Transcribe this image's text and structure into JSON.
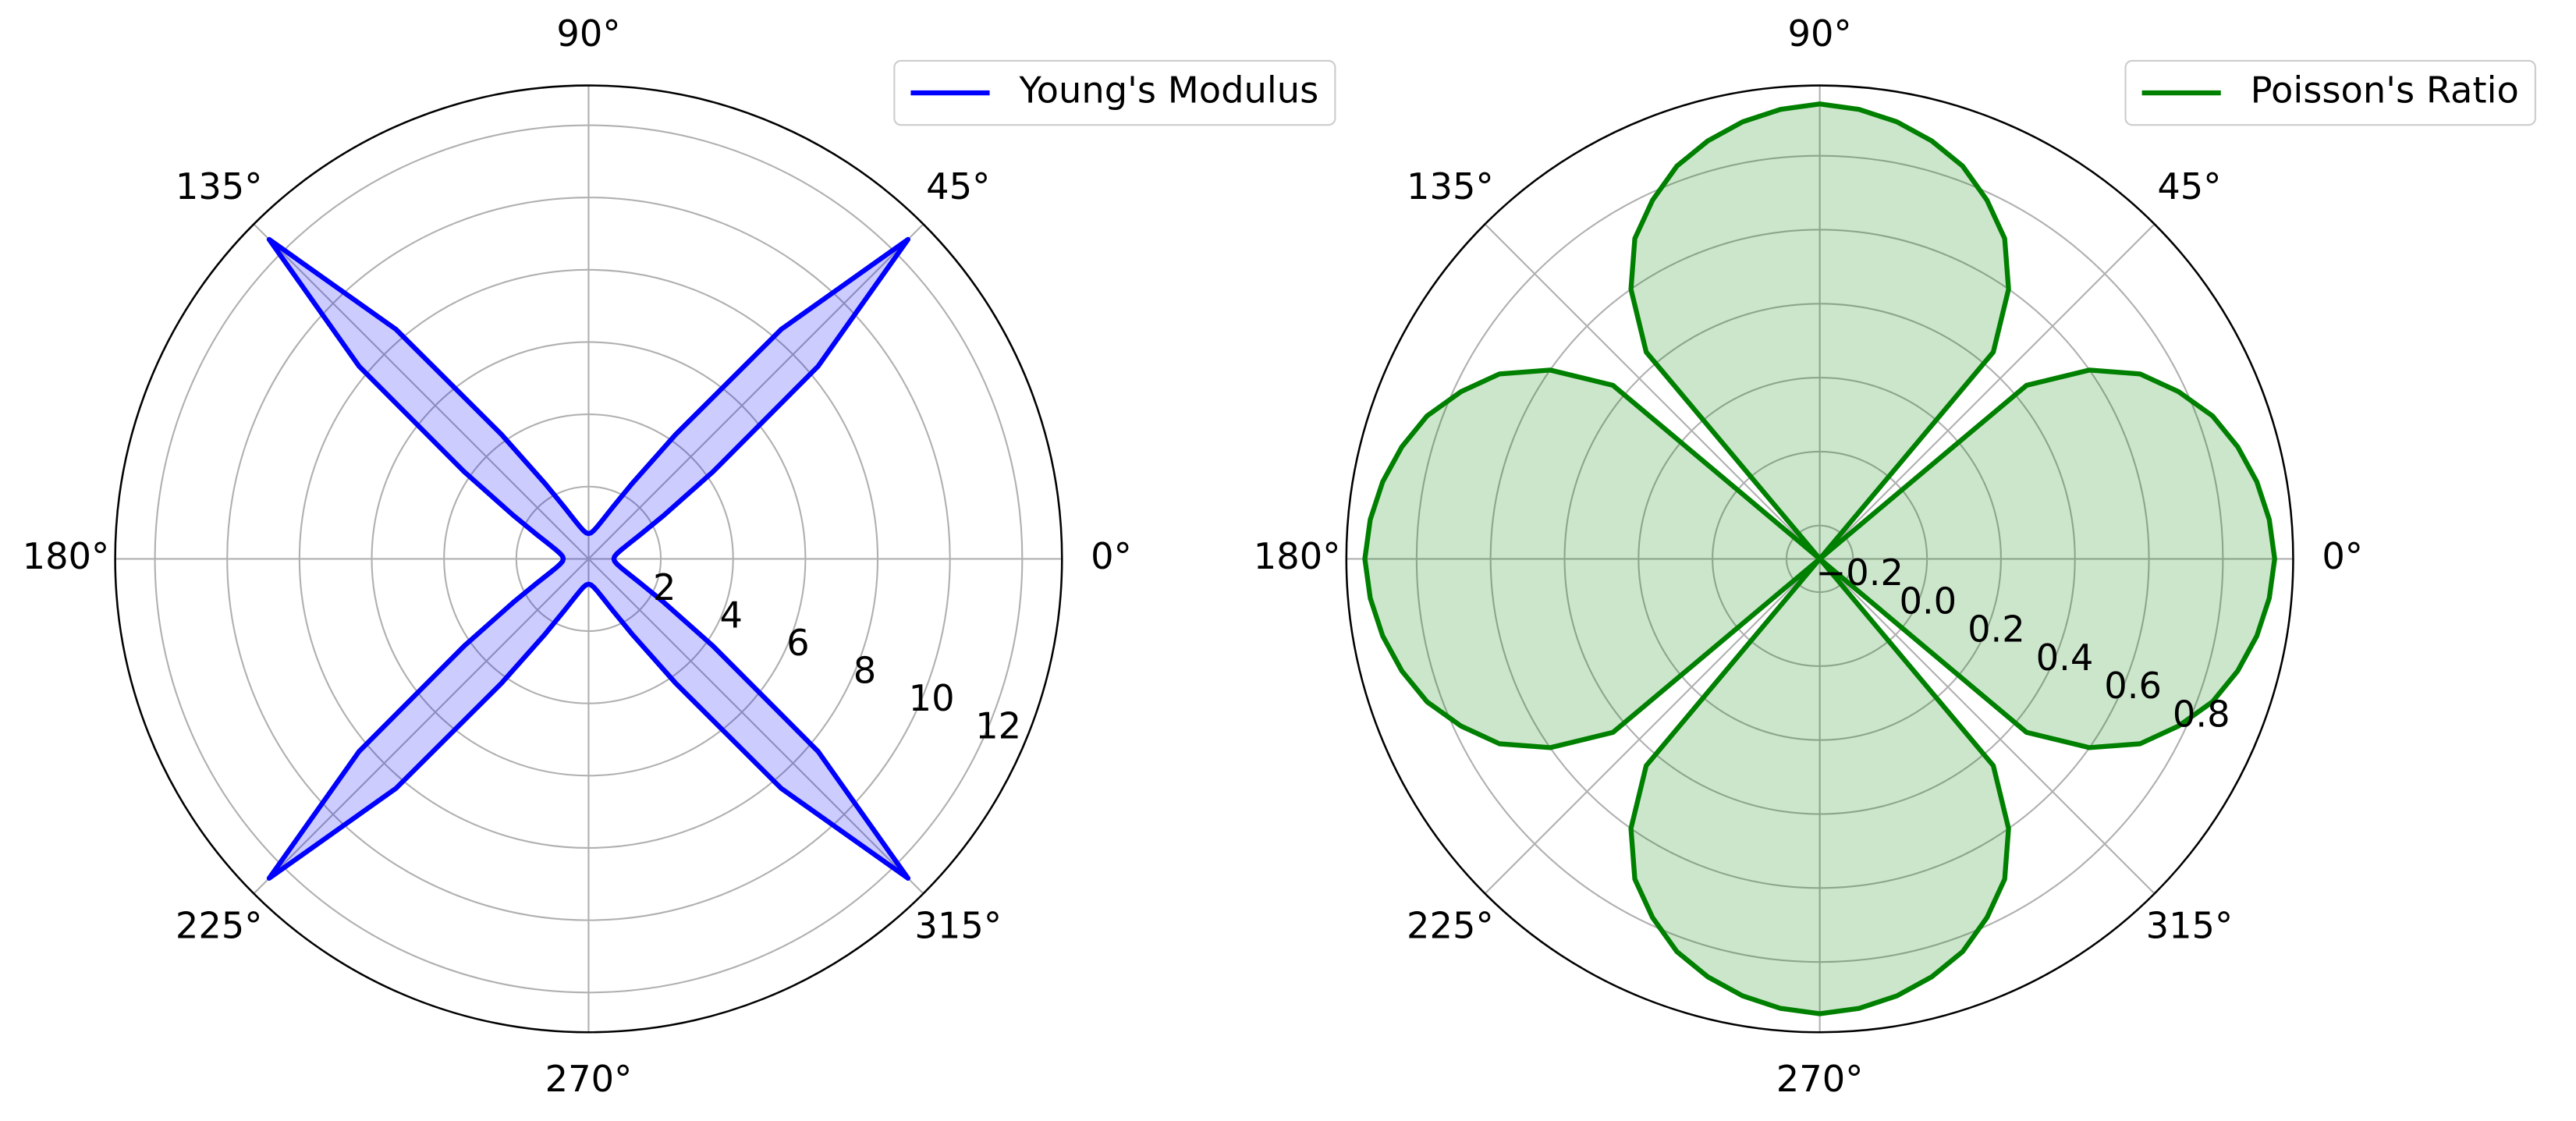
{
  "chart_data": [
    {
      "type": "polar",
      "theta": [
        0,
        5,
        10,
        15,
        20,
        25,
        30,
        35,
        40,
        45,
        50,
        55,
        60,
        65,
        70,
        75,
        80,
        85,
        90,
        95,
        100,
        105,
        110,
        115,
        120,
        125,
        130,
        135,
        140,
        145,
        150,
        155,
        160,
        165,
        170,
        175,
        180,
        185,
        190,
        195,
        200,
        205,
        210,
        215,
        220,
        225,
        230,
        235,
        240,
        245,
        250,
        255,
        260,
        265,
        270,
        275,
        280,
        285,
        290,
        295,
        300,
        305,
        310,
        315,
        320,
        325,
        330,
        335,
        340,
        345,
        350,
        355,
        360
      ],
      "series": [
        {
          "name": "Young's Modulus",
          "color": "#0000ff",
          "values": [
            0.7,
            0.72,
            0.79,
            0.92,
            1.15,
            1.57,
            2.4,
            4.2,
            8.29,
            12.5,
            8.29,
            4.2,
            2.4,
            1.57,
            1.15,
            0.92,
            0.79,
            0.72,
            0.7,
            0.72,
            0.79,
            0.92,
            1.15,
            1.57,
            2.4,
            4.2,
            8.29,
            12.5,
            8.29,
            4.2,
            2.4,
            1.57,
            1.15,
            0.92,
            0.79,
            0.72,
            0.7,
            0.72,
            0.79,
            0.92,
            1.15,
            1.57,
            2.4,
            4.2,
            8.29,
            12.5,
            8.29,
            4.2,
            2.4,
            1.57,
            1.15,
            0.92,
            0.79,
            0.72,
            0.7,
            0.72,
            0.79,
            0.92,
            1.15,
            1.57,
            2.4,
            4.2,
            8.29,
            12.5,
            8.29,
            4.2,
            2.4,
            1.57,
            1.15,
            0.92,
            0.79,
            0.72,
            0.7
          ]
        }
      ],
      "fill": true,
      "rlim": [
        0,
        13.1
      ],
      "rticks": [
        2,
        4,
        6,
        8,
        10,
        12
      ],
      "thetaticks": [
        {
          "value": 0,
          "label": "0°"
        },
        {
          "value": 45,
          "label": "45°"
        },
        {
          "value": 90,
          "label": "90°"
        },
        {
          "value": 135,
          "label": "135°"
        },
        {
          "value": 180,
          "label": "180°"
        },
        {
          "value": 225,
          "label": "225°"
        },
        {
          "value": 270,
          "label": "270°"
        },
        {
          "value": 315,
          "label": "315°"
        }
      ],
      "grid": true,
      "legend": "upper right"
    },
    {
      "type": "polar",
      "theta": [
        0,
        5,
        10,
        15,
        20,
        25,
        30,
        35,
        40,
        45,
        50,
        55,
        60,
        65,
        70,
        75,
        80,
        85,
        90,
        95,
        100,
        105,
        110,
        115,
        120,
        125,
        130,
        135,
        140,
        145,
        150,
        155,
        160,
        165,
        170,
        175,
        180,
        185,
        190,
        195,
        200,
        205,
        210,
        215,
        220,
        225,
        230,
        235,
        240,
        245,
        250,
        255,
        260,
        265,
        270,
        275,
        280,
        285,
        290,
        295,
        300,
        305,
        310,
        315,
        320,
        325,
        330,
        335,
        340,
        345,
        350,
        355,
        360
      ],
      "series": [
        {
          "name": "Poisson's Ratio",
          "color": "#008000",
          "values": [
            0.94,
            0.93,
            0.91,
            0.88,
            0.84,
            0.78,
            0.71,
            0.6,
            0.44,
            -0.29,
            0.44,
            0.6,
            0.71,
            0.78,
            0.84,
            0.88,
            0.91,
            0.93,
            0.94,
            0.93,
            0.91,
            0.88,
            0.84,
            0.78,
            0.71,
            0.6,
            0.44,
            -0.29,
            0.44,
            0.6,
            0.71,
            0.78,
            0.84,
            0.88,
            0.91,
            0.93,
            0.94,
            0.93,
            0.91,
            0.88,
            0.84,
            0.78,
            0.71,
            0.6,
            0.44,
            -0.29,
            0.44,
            0.6,
            0.71,
            0.78,
            0.84,
            0.88,
            0.91,
            0.93,
            0.94,
            0.93,
            0.91,
            0.88,
            0.84,
            0.78,
            0.71,
            0.6,
            0.44,
            -0.29,
            0.44,
            0.6,
            0.71,
            0.78,
            0.84,
            0.88,
            0.91,
            0.93,
            0.94
          ]
        }
      ],
      "fill": true,
      "rlim": [
        -0.29,
        0.99
      ],
      "rticks": [
        {
          "value": -0.2,
          "label": "−0.2"
        },
        {
          "value": 0,
          "label": "0.0"
        },
        0.2,
        0.4,
        0.6,
        0.8
      ],
      "thetaticks": [
        {
          "value": 0,
          "label": "0°"
        },
        {
          "value": 45,
          "label": "45°"
        },
        {
          "value": 90,
          "label": "90°"
        },
        {
          "value": 135,
          "label": "135°"
        },
        {
          "value": 180,
          "label": "180°"
        },
        {
          "value": 225,
          "label": "225°"
        },
        {
          "value": 270,
          "label": "270°"
        },
        {
          "value": 315,
          "label": "315°"
        }
      ],
      "grid": true,
      "legend": "upper right"
    }
  ]
}
